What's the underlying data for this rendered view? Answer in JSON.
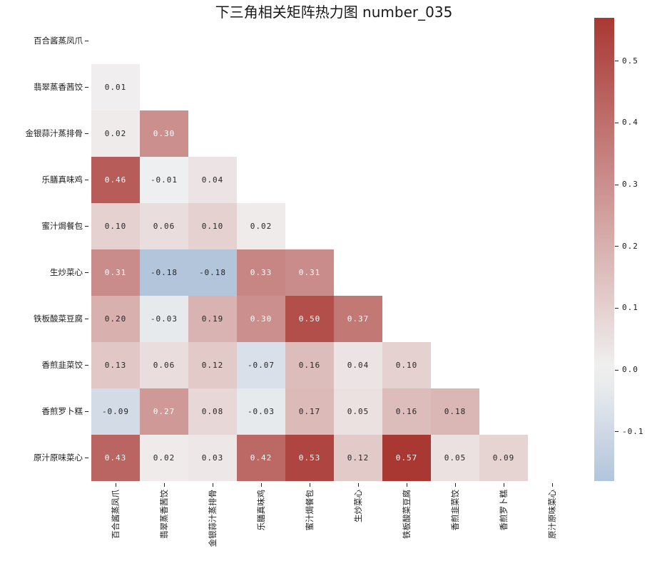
{
  "title": "下三角相关矩阵热力图 number_035",
  "chart_data": {
    "type": "heatmap",
    "subtype": "lower-triangle-correlation-matrix",
    "title": "下三角相关矩阵热力图 number_035",
    "categories": [
      "百合酱蒸凤爪",
      "翡翠蒸香茜饺",
      "金银蒜汁蒸排骨",
      "乐膳真味鸡",
      "蜜汁焗餐包",
      "生炒菜心",
      "铁板酸菜豆腐",
      "香煎韭菜饺",
      "香煎罗卜糕",
      "原汁原味菜心"
    ],
    "rows": [
      [],
      [
        0.01
      ],
      [
        0.02,
        0.3
      ],
      [
        0.46,
        -0.01,
        0.04
      ],
      [
        0.1,
        0.06,
        0.1,
        0.02
      ],
      [
        0.31,
        -0.18,
        -0.18,
        0.33,
        0.31
      ],
      [
        0.2,
        -0.03,
        0.19,
        0.3,
        0.5,
        0.37
      ],
      [
        0.13,
        0.06,
        0.12,
        -0.07,
        0.16,
        0.04,
        0.1
      ],
      [
        -0.09,
        0.27,
        0.08,
        -0.03,
        0.17,
        0.05,
        0.16,
        0.18
      ],
      [
        0.43,
        0.02,
        0.03,
        0.42,
        0.53,
        0.12,
        0.57,
        0.05,
        0.09
      ]
    ],
    "value_decimals": 2,
    "grid": false,
    "diagonal_shown": false,
    "colorbar": {
      "position": "right",
      "vmin": -0.18,
      "vmax": 0.57,
      "tick_values": [
        0.5,
        0.4,
        0.3,
        0.2,
        0.1,
        0.0,
        -0.1
      ],
      "tick_labels": [
        "0.5",
        "0.4",
        "0.3",
        "0.2",
        "0.1",
        "0.0",
        "-0.1"
      ]
    },
    "colors": {
      "center": "#f1f1f1",
      "positive_max": "#a93833",
      "negative_full": "#2b66ac",
      "center_value": 0,
      "half_range": 0.57,
      "annot_dark": "#262626",
      "annot_light": "#ffffff",
      "tick_color": "#262626"
    }
  }
}
